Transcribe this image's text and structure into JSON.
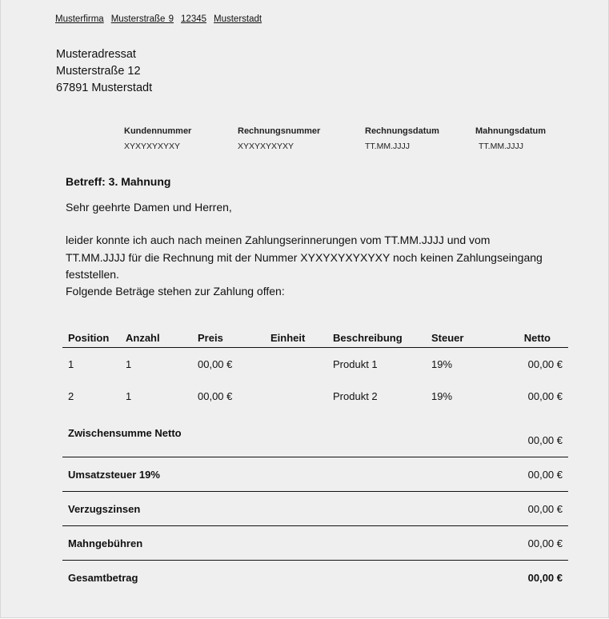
{
  "sender": [
    "Musterfirma",
    "Musterstraße 9",
    "12345",
    "Musterstadt"
  ],
  "recipient": [
    "Musteradressat",
    "Musterstraße 12",
    "67891 Musterstadt"
  ],
  "meta": [
    {
      "label": "Kundennummer",
      "value": "XYXYXYXYXY"
    },
    {
      "label": "Rechnungsnummer",
      "value": "XYXYXYXYXY"
    },
    {
      "label": "Rechnungsdatum",
      "value": "TT.MM.JJJJ"
    },
    {
      "label": "Mahnungsdatum",
      "value": "TT.MM.JJJJ"
    }
  ],
  "subject": "Betreff: 3. Mahnung",
  "salutation": "Sehr geehrte Damen und Herren,",
  "body": [
    "leider konnte ich auch nach meinen Zahlungserinnerungen vom TT.MM.JJJJ und vom",
    "TT.MM.JJJJ für die Rechnung mit der Nummer XYXYXYXYXYXY noch keinen Zahlungseingang",
    "feststellen.",
    "Folgende Beträge stehen zur Zahlung offen:"
  ],
  "table": {
    "headers": [
      "Position",
      "Anzahl",
      "Preis",
      "Einheit",
      "Beschreibung",
      "Steuer",
      "Netto"
    ],
    "rows": [
      [
        "1",
        "1",
        "00,00 €",
        "",
        "Produkt 1",
        "19%",
        "00,00 €"
      ],
      [
        "2",
        "1",
        "00,00 €",
        "",
        "Produkt 2",
        "19%",
        "00,00 €"
      ]
    ]
  },
  "totals": [
    {
      "label": "Zwischensumme Netto",
      "value": "00,00 €"
    },
    {
      "label": "Umsatzsteuer 19%",
      "value": "00,00 €"
    },
    {
      "label": "Verzugszinsen",
      "value": "00,00 €"
    },
    {
      "label": "Mahngebühren",
      "value": "00,00 €"
    },
    {
      "label": "Gesamtbetrag",
      "value": "00,00 €"
    }
  ]
}
